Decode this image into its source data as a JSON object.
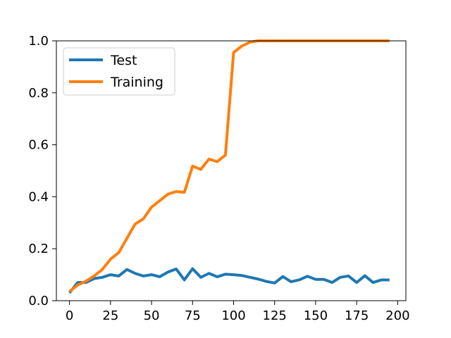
{
  "chart_data": {
    "type": "line",
    "xlim": [
      -8,
      205
    ],
    "ylim": [
      0.0,
      1.0
    ],
    "x_ticks": [
      0,
      25,
      50,
      75,
      100,
      125,
      150,
      175,
      200
    ],
    "y_ticks": [
      0.0,
      0.2,
      0.4,
      0.6,
      0.8,
      1.0
    ],
    "x_tick_labels": [
      "0",
      "25",
      "50",
      "75",
      "100",
      "125",
      "150",
      "175",
      "200"
    ],
    "y_tick_labels": [
      "0.0",
      "0.2",
      "0.4",
      "0.6",
      "0.8",
      "1.0"
    ],
    "grid": false,
    "legend_position": "top-left",
    "series": [
      {
        "name": "Test",
        "color": "#1f77b4",
        "points": [
          [
            0,
            0.03
          ],
          [
            5,
            0.07
          ],
          [
            10,
            0.07
          ],
          [
            15,
            0.085
          ],
          [
            20,
            0.09
          ],
          [
            25,
            0.1
          ],
          [
            30,
            0.095
          ],
          [
            35,
            0.12
          ],
          [
            40,
            0.105
          ],
          [
            45,
            0.095
          ],
          [
            50,
            0.1
          ],
          [
            55,
            0.092
          ],
          [
            60,
            0.11
          ],
          [
            65,
            0.122
          ],
          [
            70,
            0.08
          ],
          [
            75,
            0.123
          ],
          [
            80,
            0.09
          ],
          [
            85,
            0.105
          ],
          [
            90,
            0.092
          ],
          [
            95,
            0.102
          ],
          [
            100,
            0.1
          ],
          [
            105,
            0.097
          ],
          [
            110,
            0.09
          ],
          [
            115,
            0.083
          ],
          [
            120,
            0.074
          ],
          [
            125,
            0.068
          ],
          [
            130,
            0.093
          ],
          [
            135,
            0.073
          ],
          [
            140,
            0.08
          ],
          [
            145,
            0.094
          ],
          [
            150,
            0.082
          ],
          [
            155,
            0.082
          ],
          [
            160,
            0.07
          ],
          [
            165,
            0.09
          ],
          [
            170,
            0.095
          ],
          [
            175,
            0.07
          ],
          [
            180,
            0.096
          ],
          [
            185,
            0.07
          ],
          [
            190,
            0.08
          ],
          [
            195,
            0.08
          ]
        ]
      },
      {
        "name": "Training",
        "color": "#ff7f0e",
        "points": [
          [
            0,
            0.035
          ],
          [
            5,
            0.06
          ],
          [
            10,
            0.075
          ],
          [
            15,
            0.095
          ],
          [
            20,
            0.12
          ],
          [
            25,
            0.16
          ],
          [
            30,
            0.185
          ],
          [
            35,
            0.24
          ],
          [
            40,
            0.295
          ],
          [
            45,
            0.315
          ],
          [
            50,
            0.36
          ],
          [
            55,
            0.385
          ],
          [
            60,
            0.41
          ],
          [
            65,
            0.42
          ],
          [
            70,
            0.417
          ],
          [
            75,
            0.518
          ],
          [
            80,
            0.505
          ],
          [
            85,
            0.545
          ],
          [
            90,
            0.535
          ],
          [
            95,
            0.56
          ],
          [
            100,
            0.955
          ],
          [
            105,
            0.98
          ],
          [
            110,
            0.995
          ],
          [
            115,
            1.0
          ],
          [
            120,
            1.0
          ],
          [
            125,
            1.0
          ],
          [
            130,
            1.0
          ],
          [
            135,
            1.0
          ],
          [
            140,
            1.0
          ],
          [
            145,
            1.0
          ],
          [
            150,
            1.0
          ],
          [
            155,
            1.0
          ],
          [
            160,
            1.0
          ],
          [
            165,
            1.0
          ],
          [
            170,
            1.0
          ],
          [
            175,
            1.0
          ],
          [
            180,
            1.0
          ],
          [
            185,
            1.0
          ],
          [
            190,
            1.0
          ],
          [
            195,
            1.0
          ]
        ]
      }
    ]
  }
}
